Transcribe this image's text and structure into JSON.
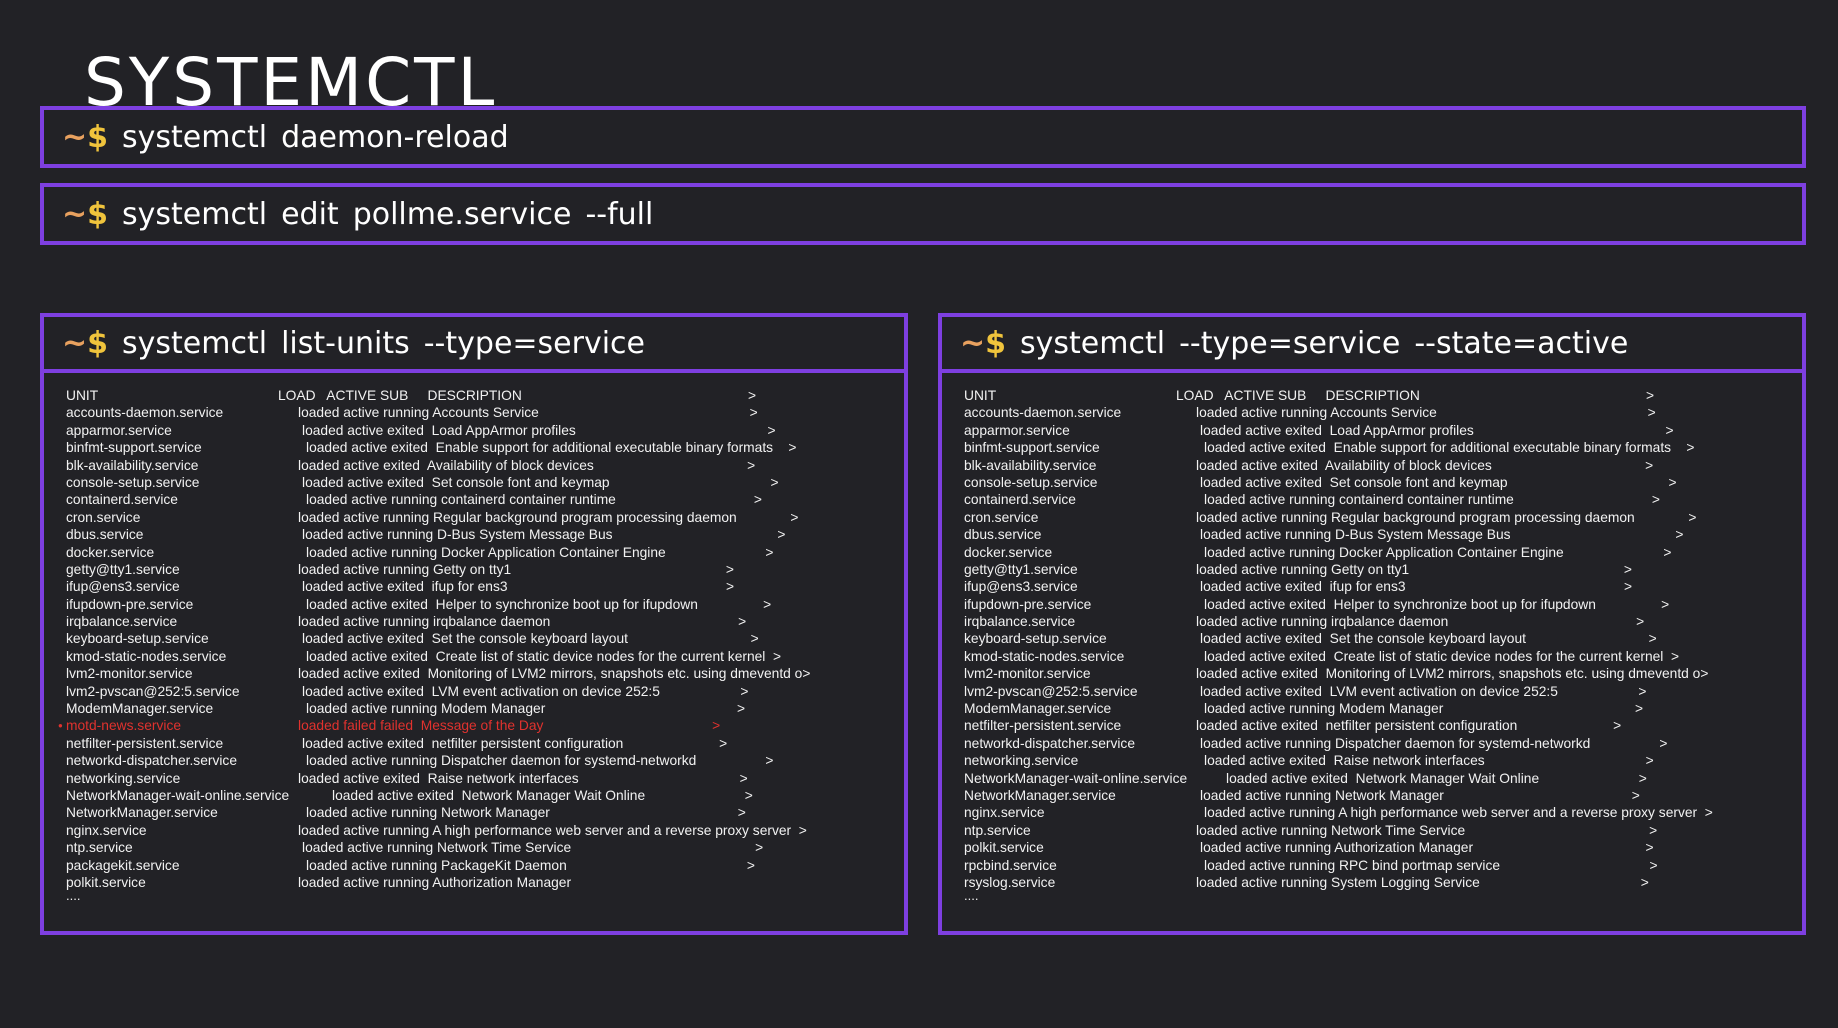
{
  "title": "SYSTEMCTL",
  "prompt": {
    "tilde": "~",
    "dollar": "$"
  },
  "commands": {
    "reload": [
      "systemctl",
      "daemon-reload"
    ],
    "edit": [
      "systemctl",
      "edit",
      "pollme.service",
      "--full"
    ]
  },
  "left_panel": {
    "command": [
      "systemctl",
      "list-units",
      "--type=service"
    ],
    "header": {
      "unit": "UNIT",
      "rest": "LOAD   ACTIVE SUB     DESCRIPTION                                                           >"
    },
    "rows": [
      {
        "unit": "accounts-daemon.service",
        "rest": "loaded active running Accounts Service                                                       >"
      },
      {
        "unit": "apparmor.service",
        "rest": "loaded active exited  Load AppArmor profiles                                                  >"
      },
      {
        "unit": "binfmt-support.service",
        "rest": "loaded active exited  Enable support for additional executable binary formats    >"
      },
      {
        "unit": "blk-availability.service",
        "rest": "loaded active exited  Availability of block devices                                        >"
      },
      {
        "unit": "console-setup.service",
        "rest": "loaded active exited  Set console font and keymap                                          >"
      },
      {
        "unit": "containerd.service",
        "rest": "loaded active running containerd container runtime                                    >"
      },
      {
        "unit": "cron.service",
        "rest": "loaded active running Regular background program processing daemon              >"
      },
      {
        "unit": "dbus.service",
        "rest": "loaded active running D-Bus System Message Bus                                           >"
      },
      {
        "unit": "docker.service",
        "rest": "loaded active running Docker Application Container Engine                          >"
      },
      {
        "unit": "getty@tty1.service",
        "rest": "loaded active running Getty on tty1                                                        >"
      },
      {
        "unit": "ifup@ens3.service",
        "rest": "loaded active exited  ifup for ens3                                                         >"
      },
      {
        "unit": "ifupdown-pre.service",
        "rest": "loaded active exited  Helper to synchronize boot up for ifupdown                 >"
      },
      {
        "unit": "irqbalance.service",
        "rest": "loaded active running irqbalance daemon                                                 >"
      },
      {
        "unit": "keyboard-setup.service",
        "rest": "loaded active exited  Set the console keyboard layout                                >"
      },
      {
        "unit": "kmod-static-nodes.service",
        "rest": "loaded active exited  Create list of static device nodes for the current kernel  >"
      },
      {
        "unit": "lvm2-monitor.service",
        "rest": "loaded active exited  Monitoring of LVM2 mirrors, snapshots etc. using dmeventd o>"
      },
      {
        "unit": "lvm2-pvscan@252:5.service",
        "rest": "loaded active exited  LVM event activation on device 252:5                     >"
      },
      {
        "unit": "ModemManager.service",
        "rest": "loaded active running Modem Manager                                                  >"
      },
      {
        "unit": "motd-news.service",
        "rest": "loaded failed failed  Message of the Day                                            >",
        "failed": true
      },
      {
        "unit": "netfilter-persistent.service",
        "rest": "loaded active exited  netfilter persistent configuration                         >"
      },
      {
        "unit": "networkd-dispatcher.service",
        "rest": "loaded active running Dispatcher daemon for systemd-networkd                  >"
      },
      {
        "unit": "networking.service",
        "rest": "loaded active exited  Raise network interfaces                                          >"
      },
      {
        "unit": "NetworkManager-wait-online.service",
        "rest": "loaded active exited  Network Manager Wait Online                          >"
      },
      {
        "unit": "NetworkManager.service",
        "rest": "loaded active running Network Manager                                                 >"
      },
      {
        "unit": "nginx.service",
        "rest": "loaded active running A high performance web server and a reverse proxy server  >"
      },
      {
        "unit": "ntp.service",
        "rest": "loaded active running Network Time Service                                                >"
      },
      {
        "unit": "packagekit.service",
        "rest": "loaded active running PackageKit Daemon                                               >"
      },
      {
        "unit": "polkit.service",
        "rest": "loaded active running Authorization Manager"
      }
    ],
    "ellipsis": "...."
  },
  "right_panel": {
    "command": [
      "systemctl",
      "--type=service",
      "--state=active"
    ],
    "header": {
      "unit": "UNIT",
      "rest": "LOAD   ACTIVE SUB     DESCRIPTION                                                           >"
    },
    "rows": [
      {
        "unit": "accounts-daemon.service",
        "rest": "loaded active running Accounts Service                                                       >"
      },
      {
        "unit": "apparmor.service",
        "rest": "loaded active exited  Load AppArmor profiles                                                  >"
      },
      {
        "unit": "binfmt-support.service",
        "rest": "loaded active exited  Enable support for additional executable binary formats    >"
      },
      {
        "unit": "blk-availability.service",
        "rest": "loaded active exited  Availability of block devices                                        >"
      },
      {
        "unit": "console-setup.service",
        "rest": "loaded active exited  Set console font and keymap                                          >"
      },
      {
        "unit": "containerd.service",
        "rest": "loaded active running containerd container runtime                                    >"
      },
      {
        "unit": "cron.service",
        "rest": "loaded active running Regular background program processing daemon              >"
      },
      {
        "unit": "dbus.service",
        "rest": "loaded active running D-Bus System Message Bus                                           >"
      },
      {
        "unit": "docker.service",
        "rest": "loaded active running Docker Application Container Engine                          >"
      },
      {
        "unit": "getty@tty1.service",
        "rest": "loaded active running Getty on tty1                                                        >"
      },
      {
        "unit": "ifup@ens3.service",
        "rest": "loaded active exited  ifup for ens3                                                         >"
      },
      {
        "unit": "ifupdown-pre.service",
        "rest": "loaded active exited  Helper to synchronize boot up for ifupdown                 >"
      },
      {
        "unit": "irqbalance.service",
        "rest": "loaded active running irqbalance daemon                                                 >"
      },
      {
        "unit": "keyboard-setup.service",
        "rest": "loaded active exited  Set the console keyboard layout                                >"
      },
      {
        "unit": "kmod-static-nodes.service",
        "rest": "loaded active exited  Create list of static device nodes for the current kernel  >"
      },
      {
        "unit": "lvm2-monitor.service",
        "rest": "loaded active exited  Monitoring of LVM2 mirrors, snapshots etc. using dmeventd o>"
      },
      {
        "unit": "lvm2-pvscan@252:5.service",
        "rest": "loaded active exited  LVM event activation on device 252:5                     >"
      },
      {
        "unit": "ModemManager.service",
        "rest": "loaded active running Modem Manager                                                  >"
      },
      {
        "unit": "netfilter-persistent.service",
        "rest": "loaded active exited  netfilter persistent configuration                         >"
      },
      {
        "unit": "networkd-dispatcher.service",
        "rest": "loaded active running Dispatcher daemon for systemd-networkd                  >"
      },
      {
        "unit": "networking.service",
        "rest": "loaded active exited  Raise network interfaces                                          >"
      },
      {
        "unit": "NetworkManager-wait-online.service",
        "rest": "loaded active exited  Network Manager Wait Online                          >"
      },
      {
        "unit": "NetworkManager.service",
        "rest": "loaded active running Network Manager                                                 >"
      },
      {
        "unit": "nginx.service",
        "rest": "loaded active running A high performance web server and a reverse proxy server  >"
      },
      {
        "unit": "ntp.service",
        "rest": "loaded active running Network Time Service                                                >"
      },
      {
        "unit": "polkit.service",
        "rest": "loaded active running Authorization Manager                                             >"
      },
      {
        "unit": "rpcbind.service",
        "rest": "loaded active running RPC bind portmap service                                       >"
      },
      {
        "unit": "rsyslog.service",
        "rest": "loaded active running System Logging Service                                          >"
      }
    ],
    "ellipsis": "...."
  },
  "colors": {
    "background": "#222226",
    "border": "#7e3fe0",
    "prompt_tilde": "#e8a15f",
    "prompt_dollar": "#f0c43c",
    "failed": "#e0322e"
  }
}
